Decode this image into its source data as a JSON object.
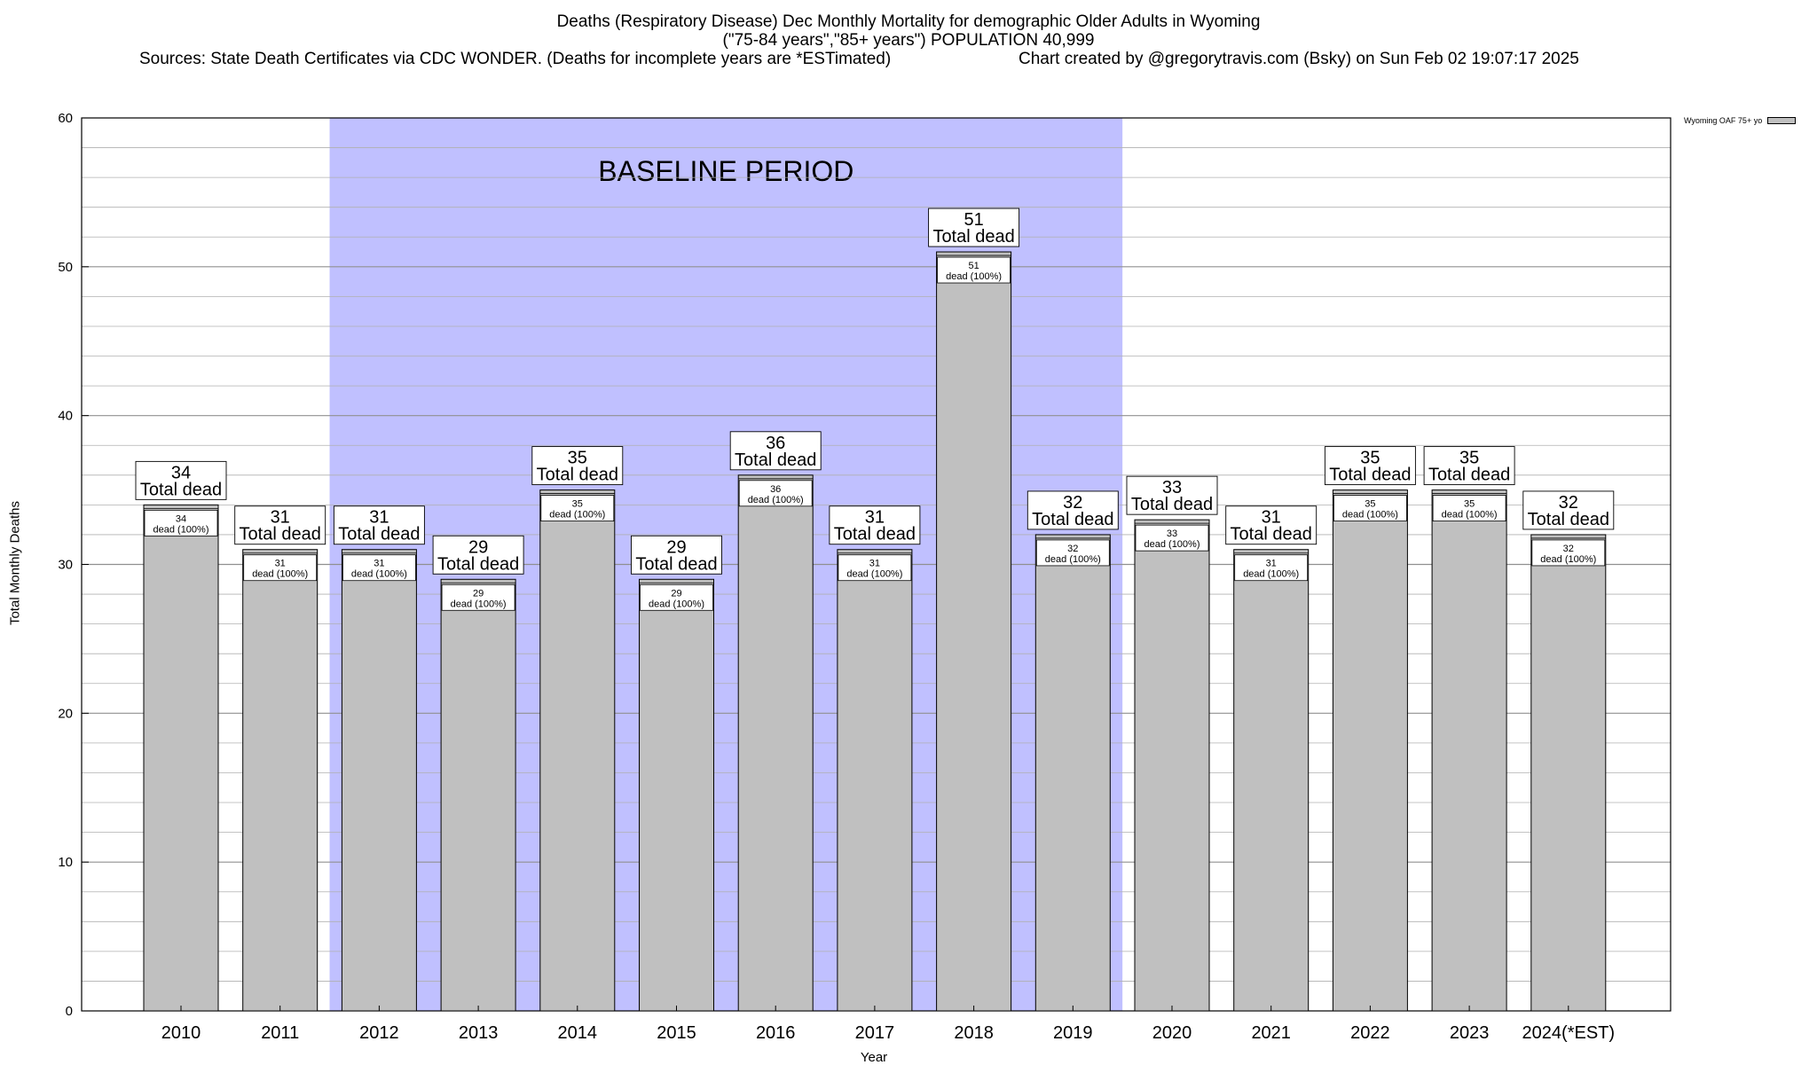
{
  "header": {
    "title_line1": "Deaths (Respiratory Disease) Dec Monthly Mortality for demographic Older Adults in Wyoming",
    "title_line2": "(\"75-84 years\",\"85+ years\") POPULATION 40,999",
    "sources": "Sources: State Death Certificates via CDC WONDER. (Deaths for incomplete years are *ESTimated)",
    "credit": "Chart created by @gregorytravis.com (Bsky) on Sun Feb 02 19:07:17 2025"
  },
  "legend": {
    "label": "Wyoming OAF 75+ yo"
  },
  "chart_data": {
    "type": "bar",
    "xlabel": "Year",
    "ylabel": "Total Monthly Deaths",
    "ylim": [
      0,
      60
    ],
    "y_ticks": [
      0,
      10,
      20,
      30,
      40,
      50,
      60
    ],
    "grid": true,
    "categories": [
      "2010",
      "2011",
      "2012",
      "2013",
      "2014",
      "2015",
      "2016",
      "2017",
      "2018",
      "2019",
      "2020",
      "2021",
      "2022",
      "2023",
      "2024(*EST)"
    ],
    "series": [
      {
        "name": "Wyoming OAF 75+ yo",
        "values": [
          34,
          31,
          31,
          29,
          35,
          29,
          36,
          31,
          51,
          32,
          33,
          31,
          35,
          35,
          32
        ]
      }
    ],
    "top_label_suffix": "Total dead",
    "inner_label_suffix": "dead (100%)",
    "shaded_region": {
      "label": "BASELINE PERIOD",
      "from": "2012",
      "to": "2019"
    },
    "colors": {
      "bar": "#c0c0c0",
      "baseline": "#c0c0ff",
      "grid": "#b0b0b0"
    },
    "legend_position": "top-right"
  }
}
